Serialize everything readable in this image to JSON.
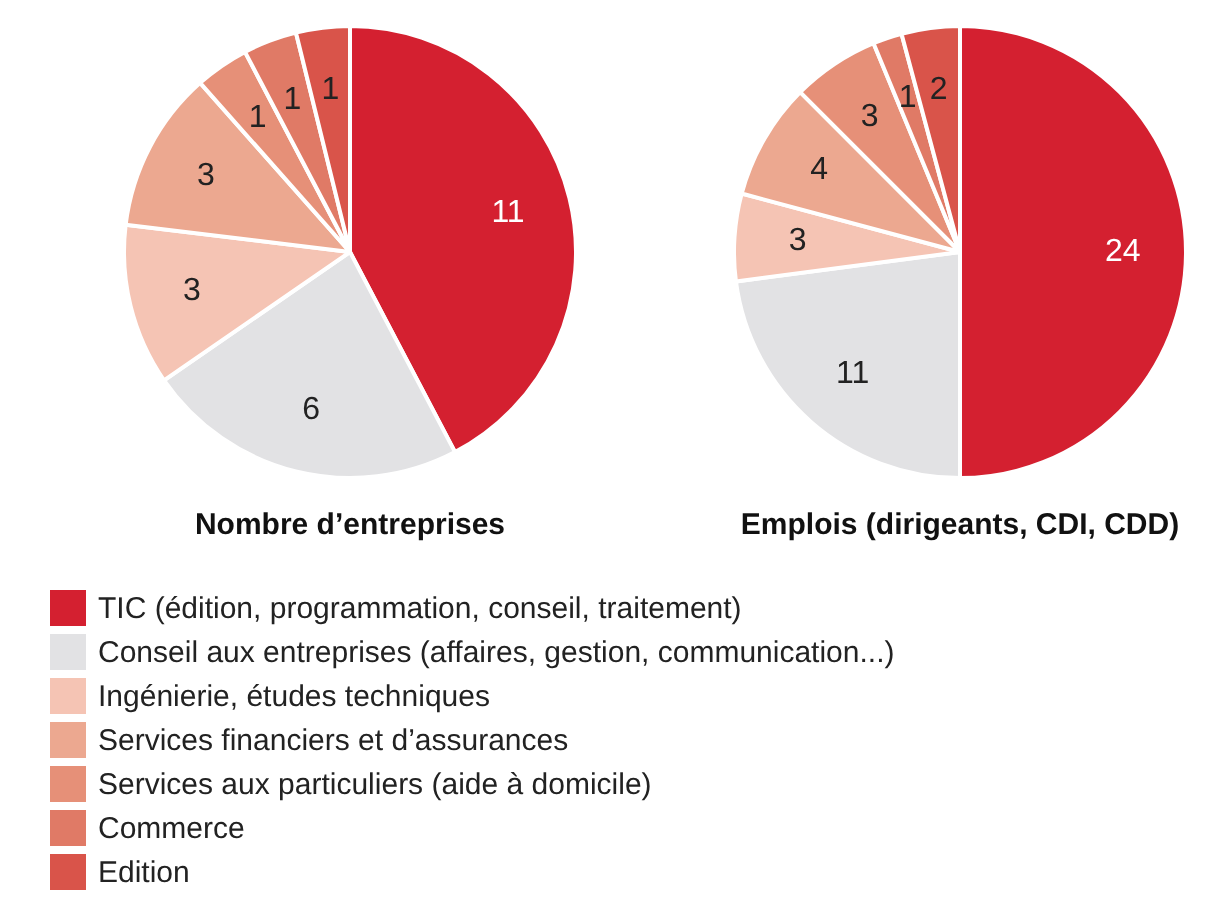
{
  "chart_data": [
    {
      "type": "pie",
      "title": "Nombre d’entreprises",
      "categories": [
        "TIC (édition, programmation, conseil, traitement)",
        "Conseil aux entreprises (affaires, gestion, communication...)",
        "Ingénierie, études techniques",
        "Services financiers et d’assurances",
        "Services aux particuliers (aide à domicile)",
        "Commerce",
        "Edition"
      ],
      "values": [
        11,
        6,
        3,
        3,
        1,
        1,
        1
      ],
      "colors": [
        "#d42030",
        "#e2e2e4",
        "#f5c4b4",
        "#eca890",
        "#e69078",
        "#e07a66",
        "#d9544a"
      ],
      "data_labels": true,
      "legend": "bottom"
    },
    {
      "type": "pie",
      "title": "Emplois (dirigeants, CDI, CDD)",
      "categories": [
        null,
        null,
        null,
        null,
        null,
        null,
        null
      ],
      "values": [
        24,
        11,
        3,
        4,
        3,
        1,
        2
      ],
      "colors": [
        "#d42030",
        "#e2e2e4",
        "#f5c4b4",
        "#eca890",
        "#e69078",
        "#e07a66",
        "#d9544a"
      ],
      "data_labels": true
    }
  ]
}
